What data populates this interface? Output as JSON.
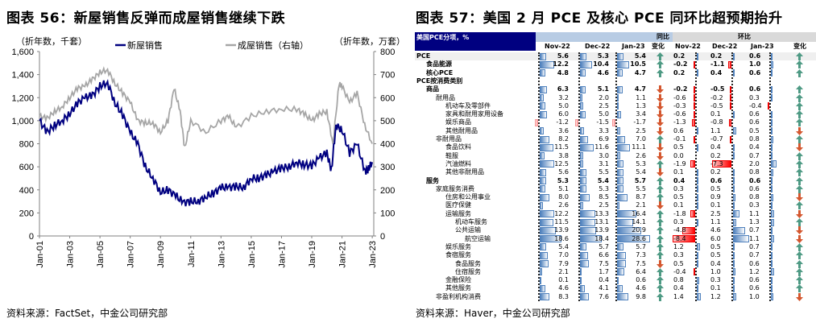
{
  "left": {
    "title": "图表 56：新屋销售反弹而成屋销售继续下跌",
    "source": "资料来源：FactSet，中金公司研究部"
  },
  "right": {
    "title": "图表 57：美国 2 月 PCE 及核心 PCE 同环比超预期抬升",
    "source": "资料来源：Haver，中金公司研究部",
    "header": {
      "corner": "美国PCE分项，%",
      "yoy": "同比",
      "mom": "环比",
      "months": [
        "Nov-22",
        "Dec-22",
        "Jan-23"
      ],
      "change": "变化"
    },
    "colors": {
      "up": "#4e9a84",
      "down": "#d4572f",
      "header": "#000080",
      "yoy_bg": "#b8cce4",
      "mom_bg": "#d9d9d9"
    },
    "rows": [
      {
        "label": "PCE",
        "level": 0,
        "bold": true,
        "yoy": [
          5.6,
          5.3,
          5.4
        ],
        "yoy_dir": "up",
        "mom": [
          0.2,
          0.2,
          0.6
        ],
        "mom_dir": "up"
      },
      {
        "label": "食品能源",
        "level": 1,
        "bold": true,
        "yoy": [
          12.2,
          10.4,
          10.5
        ],
        "yoy_dir": "up",
        "mom": [
          -0.2,
          -1.1,
          1.0
        ],
        "mom_dir": "up"
      },
      {
        "label": "核心PCE",
        "level": 1,
        "bold": true,
        "yoy": [
          4.8,
          4.6,
          4.7
        ],
        "yoy_dir": "up",
        "mom": [
          0.2,
          0.4,
          0.6
        ],
        "mom_dir": "up"
      },
      {
        "label": "PCE按消费类别",
        "level": 0,
        "bold": true
      },
      {
        "label": "商品",
        "level": 1,
        "bold": true,
        "yoy": [
          6.3,
          5.1,
          4.7
        ],
        "yoy_dir": "down",
        "mom": [
          -0.2,
          -0.5,
          0.6
        ],
        "mom_dir": "up"
      },
      {
        "label": "耐用品",
        "level": 2,
        "yoy": [
          3.2,
          2.0,
          1.1
        ],
        "yoy_dir": "down",
        "mom": [
          -0.6,
          -0.2,
          0.3
        ],
        "mom_dir": "up"
      },
      {
        "label": "机动车及零部件",
        "level": 3,
        "yoy": [
          5.0,
          2.5,
          1.3
        ],
        "yoy_dir": "down",
        "mom": [
          -0.3,
          -0.5,
          -0.4
        ],
        "mom_dir": "up"
      },
      {
        "label": "家具和耐用家用设备",
        "level": 3,
        "yoy": [
          6.0,
          5.0,
          3.4
        ],
        "yoy_dir": "down",
        "mom": [
          -0.6,
          0.1,
          0.6
        ],
        "mom_dir": "up"
      },
      {
        "label": "娱乐商品",
        "level": 3,
        "yoy": [
          -1.2,
          -1.5,
          -1.7
        ],
        "yoy_dir": "down",
        "mom": [
          -1.3,
          -0.8,
          0.6
        ],
        "mom_dir": "up"
      },
      {
        "label": "其他耐用品",
        "level": 3,
        "yoy": [
          3.6,
          3.3,
          2.5
        ],
        "yoy_dir": "down",
        "mom": [
          0.6,
          1.1,
          0.5
        ],
        "mom_dir": "down"
      },
      {
        "label": "非耐用品",
        "level": 2,
        "yoy": [
          8.2,
          6.9,
          7.0
        ],
        "yoy_dir": "up",
        "mom": [
          -0.1,
          -0.7,
          0.8
        ],
        "mom_dir": "up"
      },
      {
        "label": "食品饮料",
        "level": 3,
        "yoy": [
          11.5,
          11.6,
          11.1
        ],
        "yoy_dir": "down",
        "mom": [
          0.5,
          0.4,
          0.4
        ],
        "mom_dir": "down"
      },
      {
        "label": "鞋服",
        "level": 3,
        "yoy": [
          3.8,
          3.0,
          2.6
        ],
        "yoy_dir": "down",
        "mom": [
          0.0,
          0.2,
          0.7
        ],
        "mom_dir": "up"
      },
      {
        "label": "汽油燃料",
        "level": 3,
        "yoy": [
          12.5,
          3.1,
          5.3
        ],
        "yoy_dir": "up",
        "mom": [
          -1.9,
          -7.3,
          2.0
        ],
        "mom_dir": "up"
      },
      {
        "label": "其他非耐用品",
        "level": 3,
        "yoy": [
          5.6,
          5.5,
          5.4
        ],
        "yoy_dir": "down",
        "mom": [
          0.1,
          0.2,
          0.8
        ],
        "mom_dir": "up"
      },
      {
        "label": "服务",
        "level": 1,
        "bold": true,
        "yoy": [
          5.3,
          5.4,
          5.7
        ],
        "yoy_dir": "up",
        "mom": [
          0.4,
          0.6,
          0.6
        ],
        "mom_dir": "up"
      },
      {
        "label": "家庭服务消费",
        "level": 2,
        "yoy": [
          5.1,
          5.3,
          5.5
        ],
        "yoy_dir": "up",
        "mom": [
          0.3,
          0.5,
          0.6
        ],
        "mom_dir": "up"
      },
      {
        "label": "住房和公用事业",
        "level": 3,
        "yoy": [
          8.0,
          8.5,
          8.7
        ],
        "yoy_dir": "up",
        "mom": [
          0.5,
          0.9,
          0.8
        ],
        "mom_dir": "down"
      },
      {
        "label": "医疗保健",
        "level": 3,
        "yoy": [
          2.6,
          2.5,
          2.1
        ],
        "yoy_dir": "down",
        "mom": [
          0.1,
          0.1,
          0.3
        ],
        "mom_dir": "up"
      },
      {
        "label": "运输服务",
        "level": 3,
        "yoy": [
          12.2,
          13.3,
          16.4
        ],
        "yoy_dir": "up",
        "mom": [
          -1.8,
          2.5,
          1.1
        ],
        "mom_dir": "down"
      },
      {
        "label": "机动车服务",
        "level": 4,
        "yoy": [
          11.5,
          13.1,
          14.1
        ],
        "yoy_dir": "up",
        "mom": [
          0.3,
          1.1,
          1.3
        ],
        "mom_dir": "up"
      },
      {
        "label": "公共运输",
        "level": 4,
        "yoy": [
          13.9,
          13.9,
          20.9
        ],
        "yoy_dir": "up",
        "mom": [
          -4.8,
          4.6,
          0.7
        ],
        "mom_dir": "down"
      },
      {
        "label": "航空运输",
        "level": 5,
        "yoy": [
          18.6,
          18.4,
          28.6
        ],
        "yoy_dir": "up",
        "mom": [
          -8.4,
          6.0,
          1.1
        ],
        "mom_dir": "down"
      },
      {
        "label": "娱乐服务",
        "level": 3,
        "yoy": [
          5.4,
          5.7,
          5.7
        ],
        "yoy_dir": "up",
        "mom": [
          1.2,
          0.5,
          0.7
        ],
        "mom_dir": "up"
      },
      {
        "label": "食宿服务",
        "level": 3,
        "yoy": [
          7.0,
          6.6,
          7.3
        ],
        "yoy_dir": "up",
        "mom": [
          0.3,
          0.5,
          0.7
        ],
        "mom_dir": "up"
      },
      {
        "label": "食品服务",
        "level": 4,
        "yoy": [
          7.9,
          7.5,
          7.5
        ],
        "yoy_dir": "down",
        "mom": [
          0.5,
          0.4,
          0.6
        ],
        "mom_dir": "up"
      },
      {
        "label": "住宿服务",
        "level": 4,
        "yoy": [
          2.1,
          1.7,
          6.4
        ],
        "yoy_dir": "up",
        "mom": [
          -0.4,
          1.0,
          1.2
        ],
        "mom_dir": "up"
      },
      {
        "label": "金融保险",
        "level": 3,
        "yoy": [
          0.1,
          0.4,
          0.6
        ],
        "yoy_dir": "up",
        "mom": [
          0.8,
          0.3,
          0.6
        ],
        "mom_dir": "up"
      },
      {
        "label": "其他服务",
        "level": 3,
        "yoy": [
          4.6,
          4.1,
          4.6
        ],
        "yoy_dir": "up",
        "mom": [
          0.4,
          0.1,
          0.6
        ],
        "mom_dir": "up"
      },
      {
        "label": "非盈利机构消费",
        "level": 2,
        "yoy": [
          8.3,
          7.6,
          9.8
        ],
        "yoy_dir": "up",
        "mom": [
          1.4,
          1.2,
          1.0
        ],
        "mom_dir": "down"
      }
    ]
  },
  "chart_data": {
    "type": "line",
    "title": "图表 56：新屋销售反弹而成屋销售继续下跌",
    "ylabel_left": "（折年数，千套）",
    "ylabel_right": "（折年数，万套）",
    "ylim_left": [
      0,
      1600
    ],
    "ylim_right": [
      0,
      800
    ],
    "yticks_left": [
      "0",
      "200",
      "400",
      "600",
      "800",
      "1,000",
      "1,200",
      "1,400",
      "1,600"
    ],
    "yticks_right": [
      "0",
      "100",
      "200",
      "300",
      "400",
      "500",
      "600",
      "700",
      "800"
    ],
    "xticks": [
      "Jan-01",
      "Jan-03",
      "Jan-05",
      "Jan-07",
      "Jan-09",
      "Jan-11",
      "Jan-13",
      "Jan-15",
      "Jan-17",
      "Jan-19",
      "Jan-21",
      "Jan-23"
    ],
    "xlim": [
      2001,
      2023.1
    ],
    "legend_position": "top",
    "series": [
      {
        "name": "新屋销售",
        "axis": "left",
        "color": "#000080",
        "x": [
          2001,
          2001.5,
          2002,
          2002.5,
          2003,
          2003.5,
          2004,
          2004.5,
          2005,
          2005.5,
          2006,
          2006.5,
          2007,
          2007.5,
          2008,
          2008.5,
          2009,
          2009.5,
          2010,
          2010.5,
          2011,
          2011.5,
          2012,
          2012.5,
          2013,
          2013.5,
          2014,
          2014.5,
          2015,
          2015.5,
          2016,
          2016.5,
          2017,
          2017.5,
          2018,
          2018.5,
          2019,
          2019.5,
          2020,
          2020.3,
          2020.6,
          2021,
          2021.5,
          2022,
          2022.5,
          2022.75,
          2023
        ],
        "y": [
          1000,
          900,
          960,
          1000,
          1060,
          1150,
          1200,
          1220,
          1300,
          1330,
          1150,
          1050,
          900,
          800,
          600,
          500,
          380,
          400,
          350,
          290,
          300,
          300,
          340,
          370,
          420,
          420,
          430,
          420,
          500,
          500,
          530,
          560,
          590,
          600,
          640,
          620,
          610,
          680,
          720,
          570,
          960,
          920,
          720,
          800,
          560,
          580,
          640
        ]
      },
      {
        "name": "成屋销售（右轴）",
        "axis": "right",
        "color": "#a6a6a6",
        "x": [
          2001,
          2001.5,
          2002,
          2002.5,
          2003,
          2003.5,
          2004,
          2004.5,
          2005,
          2005.5,
          2006,
          2006.5,
          2007,
          2007.5,
          2008,
          2008.5,
          2009,
          2009.5,
          2009.9,
          2010.3,
          2010.6,
          2011,
          2012,
          2013,
          2013.5,
          2014,
          2015,
          2016,
          2017,
          2018,
          2018.5,
          2019,
          2019.5,
          2020,
          2020.4,
          2020.8,
          2021,
          2021.5,
          2022,
          2022.5,
          2023
        ],
        "y": [
          520,
          510,
          540,
          560,
          600,
          640,
          650,
          680,
          710,
          720,
          660,
          620,
          580,
          500,
          490,
          490,
          450,
          500,
          640,
          540,
          380,
          500,
          450,
          500,
          520,
          470,
          520,
          540,
          550,
          550,
          530,
          500,
          530,
          540,
          400,
          660,
          650,
          580,
          620,
          480,
          400
        ]
      }
    ]
  }
}
